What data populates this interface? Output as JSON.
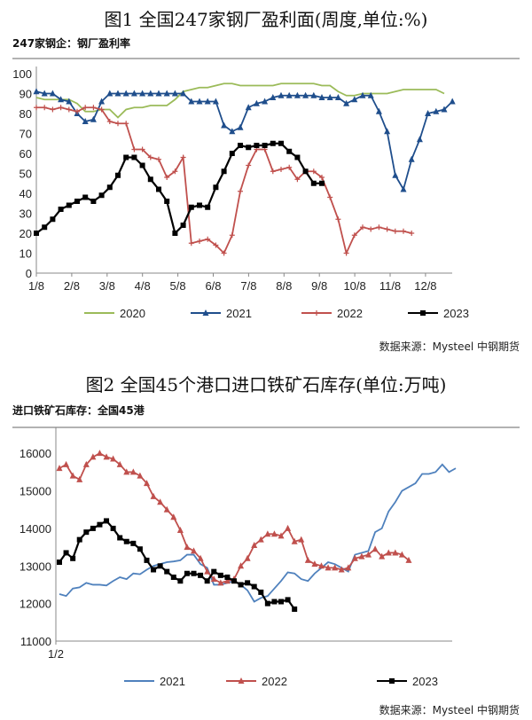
{
  "figure1": {
    "title": "图1  全国247家钢厂盈利面(周度,单位:%)",
    "subtitle": "247家钢企：钢厂盈利率",
    "source": "数据来源：Mysteel 中钢期货"
  },
  "figure2": {
    "title": "图2  全国45个港口进口铁矿石库存(单位:万吨)",
    "subtitle": "进口铁矿石库存：全国45港",
    "source": "数据来源：Mysteel 中钢期货"
  },
  "chart_data": [
    {
      "type": "line",
      "frequency": "weekly",
      "ylim": [
        0,
        100
      ],
      "yticks": [
        0,
        10,
        20,
        30,
        40,
        50,
        60,
        70,
        80,
        90,
        100
      ],
      "xticks": [
        "1/8",
        "2/8",
        "3/8",
        "4/8",
        "5/8",
        "6/8",
        "7/8",
        "8/8",
        "9/8",
        "10/8",
        "11/8",
        "12/8"
      ],
      "grid": false,
      "legend": "bottom",
      "series": [
        {
          "name": "2020",
          "color": "#9bbb59",
          "marker": "none",
          "values": [
            88,
            87,
            87,
            87,
            87,
            85,
            81,
            81,
            82,
            82,
            78,
            82,
            83,
            83,
            84,
            84,
            84,
            87,
            91,
            92,
            93,
            93,
            94,
            95,
            95,
            94,
            94,
            94,
            94,
            94,
            95,
            95,
            95,
            95,
            95,
            94,
            94,
            91,
            89,
            89,
            90,
            90,
            90,
            90,
            91,
            92,
            92,
            92,
            92,
            92,
            90
          ]
        },
        {
          "name": "2021",
          "color": "#1f4e8c",
          "marker": "triangle",
          "values": [
            91,
            90,
            90,
            87,
            86,
            80,
            76,
            77,
            86,
            90,
            90,
            90,
            90,
            90,
            90,
            90,
            90,
            90,
            90,
            86,
            86,
            86,
            86,
            74,
            71,
            73,
            83,
            85,
            86,
            88,
            89,
            89,
            89,
            89,
            89,
            88,
            88,
            88,
            85,
            87,
            89,
            89,
            81,
            71,
            49,
            42,
            57,
            67,
            80,
            81,
            82,
            86
          ]
        },
        {
          "name": "2022",
          "color": "#c0504d",
          "marker": "plus",
          "values": [
            83,
            83,
            82,
            83,
            82,
            81,
            83,
            83,
            82,
            76,
            75,
            75,
            62,
            62,
            58,
            57,
            48,
            51,
            58,
            15,
            16,
            17,
            14,
            10,
            19,
            41,
            54,
            62,
            62,
            51,
            52,
            53,
            47,
            51,
            51,
            48,
            38,
            27,
            10,
            19,
            23,
            22,
            23,
            22,
            21,
            21,
            20
          ]
        },
        {
          "name": "2023",
          "color": "#000000",
          "marker": "square",
          "values": [
            20,
            23,
            27,
            32,
            34,
            36,
            38,
            36,
            39,
            43,
            49,
            58,
            58,
            54,
            47,
            42,
            36,
            20,
            24,
            33,
            34,
            33,
            43,
            51,
            60,
            64,
            63,
            64,
            64,
            65,
            65,
            61,
            58,
            51,
            45,
            45
          ]
        }
      ]
    },
    {
      "type": "line",
      "frequency": "weekly",
      "ylim": [
        11000,
        16500
      ],
      "yticks": [
        11000,
        12000,
        13000,
        14000,
        15000,
        16000
      ],
      "xticks": [
        "1/2"
      ],
      "grid": false,
      "legend": "bottom",
      "series": [
        {
          "name": "2021",
          "color": "#4f81bd",
          "marker": "none",
          "values": [
            12250,
            12200,
            12400,
            12430,
            12550,
            12500,
            12500,
            12480,
            12600,
            12700,
            12650,
            12800,
            12780,
            12900,
            13000,
            13050,
            13100,
            13120,
            13150,
            13300,
            13300,
            13050,
            12950,
            12500,
            12500,
            12550,
            12600,
            12500,
            12350,
            12050,
            12150,
            12200,
            12400,
            12600,
            12830,
            12800,
            12650,
            12600,
            12800,
            12950,
            13100,
            13050,
            12950,
            12850,
            13300,
            13350,
            13400,
            13900,
            14000,
            14450,
            14700,
            15000,
            15100,
            15200,
            15450,
            15450,
            15500,
            15700,
            15500,
            15600
          ]
        },
        {
          "name": "2022",
          "color": "#c0504d",
          "marker": "triangle",
          "values": [
            15600,
            15700,
            15400,
            15300,
            15700,
            15900,
            16000,
            15900,
            15850,
            15700,
            15500,
            15500,
            15400,
            15200,
            14850,
            14700,
            14500,
            14300,
            13950,
            13500,
            13400,
            13200,
            12850,
            12650,
            12550,
            12600,
            12650,
            13000,
            13200,
            13550,
            13700,
            13850,
            13850,
            13800,
            14000,
            13650,
            13700,
            13150,
            13050,
            13000,
            12950,
            12950,
            12900,
            12950,
            13200,
            13250,
            13300,
            13450,
            13250,
            13350,
            13350,
            13300,
            13150
          ]
        },
        {
          "name": "2023",
          "color": "#000000",
          "marker": "square",
          "values": [
            13100,
            13350,
            13200,
            13700,
            13900,
            14000,
            14100,
            14200,
            14000,
            13750,
            13650,
            13600,
            13450,
            13150,
            12900,
            13000,
            12850,
            12700,
            12600,
            12800,
            12800,
            12750,
            12600,
            12850,
            12750,
            12700,
            12600,
            12500,
            12550,
            12450,
            12300,
            12000,
            12050,
            12050,
            12100,
            11850
          ]
        }
      ]
    }
  ]
}
